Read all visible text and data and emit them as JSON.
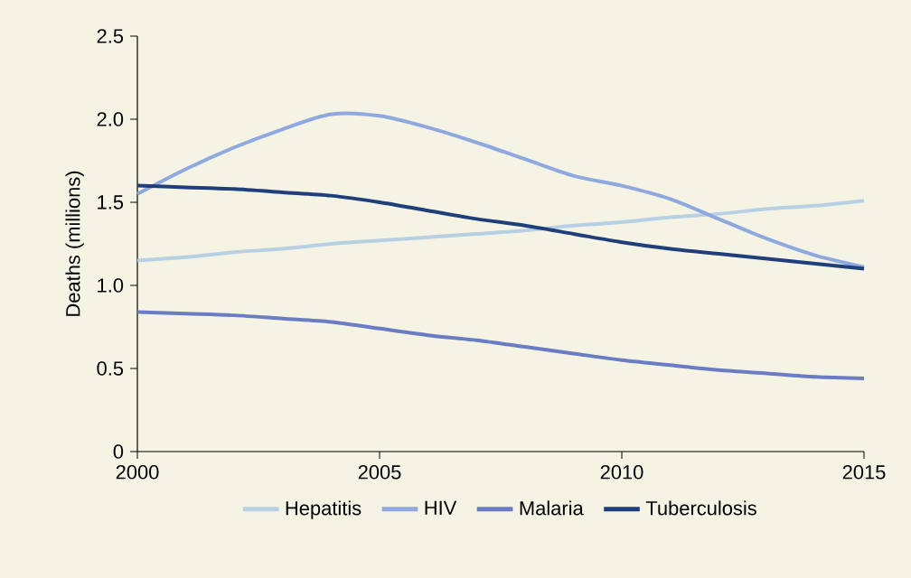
{
  "chart_data": {
    "type": "line",
    "ylabel": "Deaths (millions)",
    "x": [
      2000,
      2001,
      2002,
      2003,
      2004,
      2005,
      2006,
      2007,
      2008,
      2009,
      2010,
      2011,
      2012,
      2013,
      2014,
      2015
    ],
    "series": [
      {
        "name": "Hepatitis",
        "color": "#b8d0e4",
        "values": [
          1.15,
          1.17,
          1.2,
          1.22,
          1.25,
          1.27,
          1.29,
          1.31,
          1.33,
          1.36,
          1.38,
          1.41,
          1.43,
          1.46,
          1.48,
          1.51
        ]
      },
      {
        "name": "HIV",
        "color": "#8ea8e0",
        "values": [
          1.55,
          1.7,
          1.83,
          1.94,
          2.03,
          2.02,
          1.95,
          1.86,
          1.76,
          1.66,
          1.6,
          1.52,
          1.4,
          1.28,
          1.18,
          1.11
        ]
      },
      {
        "name": "Malaria",
        "color": "#6a7cc4",
        "values": [
          0.84,
          0.83,
          0.82,
          0.8,
          0.78,
          0.74,
          0.7,
          0.67,
          0.63,
          0.59,
          0.55,
          0.52,
          0.49,
          0.47,
          0.45,
          0.44
        ]
      },
      {
        "name": "Tuberculosis",
        "color": "#1f3f7a",
        "values": [
          1.6,
          1.59,
          1.58,
          1.56,
          1.54,
          1.5,
          1.45,
          1.4,
          1.36,
          1.31,
          1.26,
          1.22,
          1.19,
          1.16,
          1.13,
          1.1
        ]
      }
    ],
    "xlim": [
      2000,
      2015
    ],
    "xticks": [
      2000,
      2005,
      2010,
      2015
    ],
    "ylim": [
      0,
      2.5
    ],
    "yticks": [
      0,
      0.5,
      {
        "value": 1,
        "label": "1.0"
      },
      1.5,
      {
        "value": 2,
        "label": "2.0"
      },
      2.5
    ],
    "legend": "bottom",
    "grid": false
  }
}
